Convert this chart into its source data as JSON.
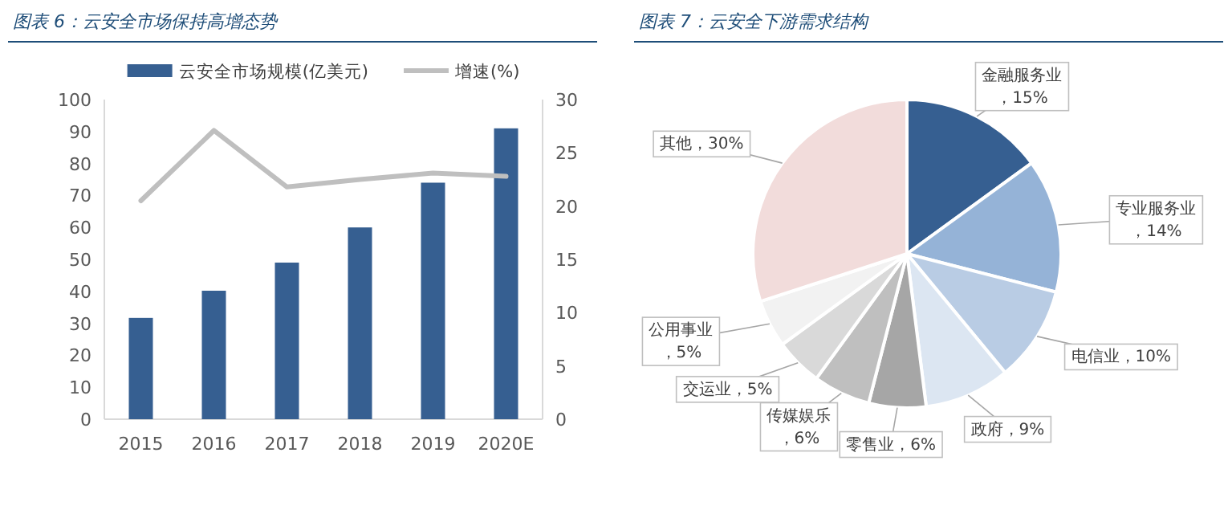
{
  "chart_data": [
    {
      "type": "bar",
      "title": "图表 6：云安全市场保持高增态势",
      "categories": [
        "2015",
        "2016",
        "2017",
        "2018",
        "2019",
        "2020E"
      ],
      "series": [
        {
          "name": "云安全市场规模(亿美元)",
          "color": "#365f91",
          "values": [
            31.7,
            40.2,
            49,
            60,
            74,
            91
          ]
        },
        {
          "name": "增速(%)",
          "type": "line",
          "axis": "y2",
          "color": "#bfbfbf",
          "values": [
            20.5,
            27.1,
            21.8,
            22.5,
            23.1,
            22.8
          ]
        }
      ],
      "ylim": [
        0,
        100
      ],
      "yticks": [
        0,
        10,
        20,
        30,
        40,
        50,
        60,
        70,
        80,
        90,
        100
      ],
      "y2lim": [
        0,
        30
      ],
      "y2ticks": [
        0,
        5,
        10,
        15,
        20,
        25,
        30
      ],
      "legend": "top",
      "grid": false,
      "marker": "none"
    },
    {
      "type": "pie",
      "title": "图表 7：云安全下游需求结构",
      "categories": [
        "金融服务业",
        "专业服务业",
        "电信业",
        "政府",
        "零售业",
        "传媒娱乐",
        "交运业",
        "公用事业",
        "其他"
      ],
      "values": [
        15,
        14,
        10,
        9,
        6,
        6,
        5,
        5,
        30
      ],
      "colors": [
        "#365f91",
        "#95b3d7",
        "#b9cce4",
        "#dce6f2",
        "#a6a6a6",
        "#bfbfbf",
        "#d9d9d9",
        "#f2f2f2",
        "#f2dcdb"
      ],
      "value_labels": [
        "，15%",
        "，14%",
        "，10%",
        "，9%",
        "，6%",
        "，6%",
        "，5%",
        "，5%",
        "，30%"
      ]
    }
  ]
}
